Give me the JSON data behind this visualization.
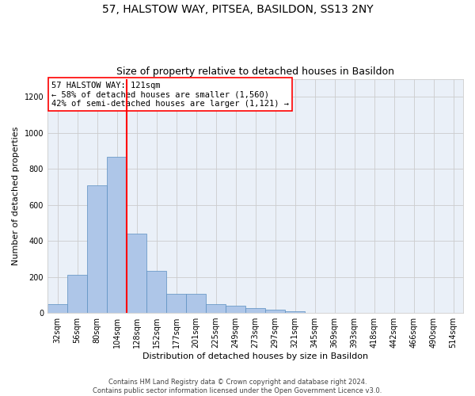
{
  "title": "57, HALSTOW WAY, PITSEA, BASILDON, SS13 2NY",
  "subtitle": "Size of property relative to detached houses in Basildon",
  "xlabel": "Distribution of detached houses by size in Basildon",
  "ylabel": "Number of detached properties",
  "categories": [
    "32sqm",
    "56sqm",
    "80sqm",
    "104sqm",
    "128sqm",
    "152sqm",
    "177sqm",
    "201sqm",
    "225sqm",
    "249sqm",
    "273sqm",
    "297sqm",
    "321sqm",
    "345sqm",
    "369sqm",
    "393sqm",
    "418sqm",
    "442sqm",
    "466sqm",
    "490sqm",
    "514sqm"
  ],
  "values": [
    50,
    210,
    710,
    865,
    440,
    235,
    105,
    105,
    47,
    38,
    25,
    20,
    10,
    0,
    0,
    0,
    0,
    0,
    0,
    0,
    0
  ],
  "bar_color": "#aec6e8",
  "bar_edge_color": "#5a8fc0",
  "vline_index": 4,
  "vline_color": "red",
  "annotation_box_text": "57 HALSTOW WAY: 121sqm\n← 58% of detached houses are smaller (1,560)\n42% of semi-detached houses are larger (1,121) →",
  "ylim": [
    0,
    1300
  ],
  "yticks": [
    0,
    200,
    400,
    600,
    800,
    1000,
    1200
  ],
  "background_color": "#ffffff",
  "grid_color": "#cccccc",
  "footer_line1": "Contains HM Land Registry data © Crown copyright and database right 2024.",
  "footer_line2": "Contains public sector information licensed under the Open Government Licence v3.0.",
  "title_fontsize": 10,
  "subtitle_fontsize": 9,
  "annotation_fontsize": 7.5,
  "ylabel_fontsize": 8,
  "xlabel_fontsize": 8,
  "tick_fontsize": 7,
  "footer_fontsize": 6
}
